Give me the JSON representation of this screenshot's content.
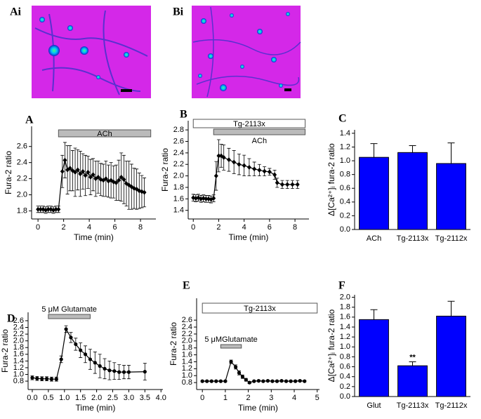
{
  "images": [
    {
      "label": "Ai"
    },
    {
      "label": "Bi"
    }
  ],
  "chart_data": [
    {
      "panel": "A",
      "type": "line",
      "marker": "diamond",
      "color": "#000000",
      "x": [
        0,
        0.2,
        0.4,
        0.6,
        0.8,
        1.0,
        1.2,
        1.4,
        1.6,
        1.9,
        2.1,
        2.3,
        2.5,
        2.7,
        2.9,
        3.1,
        3.3,
        3.5,
        3.7,
        3.9,
        4.1,
        4.3,
        4.5,
        4.7,
        4.9,
        5.1,
        5.3,
        5.5,
        5.7,
        5.9,
        6.1,
        6.3,
        6.5,
        6.7,
        6.9,
        7.1,
        7.3,
        7.5,
        7.7,
        7.9,
        8.1,
        8.3
      ],
      "values": [
        1.82,
        1.82,
        1.82,
        1.81,
        1.82,
        1.82,
        1.81,
        1.82,
        1.82,
        2.29,
        2.43,
        2.31,
        2.33,
        2.3,
        2.28,
        2.31,
        2.26,
        2.29,
        2.24,
        2.28,
        2.22,
        2.25,
        2.2,
        2.22,
        2.19,
        2.18,
        2.2,
        2.17,
        2.18,
        2.16,
        2.15,
        2.18,
        2.22,
        2.19,
        2.14,
        2.12,
        2.1,
        2.08,
        2.07,
        2.05,
        2.04,
        2.03
      ],
      "errors": [
        0.04,
        0.04,
        0.04,
        0.04,
        0.04,
        0.04,
        0.04,
        0.04,
        0.04,
        0.2,
        0.22,
        0.3,
        0.28,
        0.25,
        0.3,
        0.25,
        0.28,
        0.22,
        0.25,
        0.2,
        0.22,
        0.2,
        0.22,
        0.2,
        0.2,
        0.2,
        0.22,
        0.2,
        0.22,
        0.2,
        0.22,
        0.25,
        0.3,
        0.3,
        0.28,
        0.3,
        0.28,
        0.25,
        0.25,
        0.22,
        0.2,
        0.18
      ],
      "xlim": [
        -0.5,
        9.2
      ],
      "ylim": [
        1.7,
        2.85
      ],
      "xticks": [
        0,
        2,
        4,
        6,
        8
      ],
      "yticks": [
        1.8,
        {
          "value": 2,
          "label": "2.0"
        },
        2.2,
        2.4,
        2.6
      ],
      "xlabel": "Time (min)",
      "ylabel": "Fura-2 ratio",
      "bars": [
        {
          "text": "ACh",
          "start": 1.6,
          "end": 8.8,
          "fill": "#bbbbbb",
          "label_position": "inside"
        }
      ]
    },
    {
      "panel": "B",
      "type": "line",
      "marker": "diamond",
      "color": "#000000",
      "x": [
        0,
        0.2,
        0.4,
        0.6,
        0.8,
        1.0,
        1.2,
        1.4,
        1.6,
        1.8,
        2.0,
        2.2,
        2.4,
        2.8,
        3.2,
        3.6,
        4.0,
        4.4,
        4.8,
        5.2,
        5.6,
        6.0,
        6.4,
        6.6,
        7.0,
        7.4,
        7.8,
        8.2
      ],
      "values": [
        1.62,
        1.61,
        1.62,
        1.6,
        1.61,
        1.6,
        1.6,
        1.59,
        1.61,
        2.0,
        2.35,
        2.35,
        2.32,
        2.28,
        2.24,
        2.2,
        2.18,
        2.15,
        2.12,
        2.1,
        2.08,
        2.07,
        2.02,
        1.88,
        1.85,
        1.85,
        1.85,
        1.85
      ],
      "errors": [
        0.06,
        0.06,
        0.06,
        0.06,
        0.06,
        0.06,
        0.06,
        0.06,
        0.06,
        0.25,
        0.28,
        0.2,
        0.22,
        0.2,
        0.2,
        0.18,
        0.18,
        0.15,
        0.12,
        0.1,
        0.08,
        0.06,
        0.08,
        0.08,
        0.07,
        0.07,
        0.07,
        0.07
      ],
      "xlim": [
        -0.4,
        9.1
      ],
      "ylim": [
        1.25,
        2.96
      ],
      "xticks": [
        0,
        2,
        4,
        6,
        8
      ],
      "yticks": [
        1.4,
        1.6,
        1.8,
        {
          "value": 2,
          "label": "2.0"
        },
        2.2,
        2.4,
        2.6,
        2.8
      ],
      "xlabel": "Time (min)",
      "ylabel": "Fura-2 ratio",
      "bars": [
        {
          "text": "Tg-2113x",
          "start": 0,
          "end": 8.8,
          "fill": "#ffffff",
          "label_position": "inside"
        },
        {
          "text": "ACh",
          "start": 1.6,
          "end": 8.8,
          "fill": "#bbbbbb",
          "label_position": "below"
        }
      ]
    },
    {
      "panel": "C",
      "type": "bar",
      "color": "#0000ff",
      "categories": [
        "ACh",
        "Tg-2113x",
        "Tg-2112x"
      ],
      "values": [
        1.05,
        1.12,
        0.96
      ],
      "errors": [
        0.2,
        0.1,
        0.3
      ],
      "ylim": [
        0,
        1.45
      ],
      "yticks": [
        {
          "value": 0,
          "label": "0.0"
        },
        0.2,
        0.4,
        0.6,
        0.8,
        {
          "value": 1,
          "label": "1.0"
        },
        1.2,
        1.4
      ],
      "ylabel": "Δ[Ca²⁺]ᵢ fura-2 ratio"
    },
    {
      "panel": "D",
      "type": "line",
      "marker": "circle",
      "color": "#000000",
      "x": [
        0,
        0.15,
        0.3,
        0.45,
        0.6,
        0.75,
        0.9,
        1.05,
        1.2,
        1.35,
        1.5,
        1.65,
        1.8,
        1.95,
        2.1,
        2.25,
        2.4,
        2.55,
        2.7,
        2.85,
        3.0,
        3.5
      ],
      "values": [
        0.9,
        0.88,
        0.87,
        0.87,
        0.86,
        0.86,
        1.45,
        2.35,
        2.1,
        1.9,
        1.72,
        1.6,
        1.45,
        1.35,
        1.25,
        1.17,
        1.12,
        1.1,
        1.07,
        1.07,
        1.07,
        1.08
      ],
      "errors": [
        0.06,
        0.06,
        0.06,
        0.06,
        0.06,
        0.06,
        0.1,
        0.1,
        0.15,
        0.18,
        0.22,
        0.25,
        0.3,
        0.32,
        0.35,
        0.3,
        0.28,
        0.25,
        0.22,
        0.2,
        0.2,
        0.25
      ],
      "xlim": [
        -0.13,
        4.06
      ],
      "ylim": [
        0.55,
        2.85
      ],
      "xticks": [
        {
          "value": 0,
          "label": "0.0"
        },
        0.5,
        {
          "value": 1,
          "label": "1.0"
        },
        1.5,
        {
          "value": 2,
          "label": "2.0"
        },
        2.5,
        {
          "value": 3,
          "label": "3.0"
        },
        3.5,
        {
          "value": 4,
          "label": "4.0"
        }
      ],
      "yticks": [
        0.8,
        {
          "value": 1,
          "label": "1.0"
        },
        1.2,
        1.4,
        1.6,
        1.8,
        {
          "value": 2,
          "label": "2.0"
        },
        2.2,
        2.4,
        2.6
      ],
      "xlabel": "Time (min)",
      "ylabel": "Fura-2 ratio",
      "bars": [
        {
          "text": "5 μM Glutamate",
          "start": 0.5,
          "end": 1.8,
          "fill": "#bbbbbb",
          "label_position": "above"
        }
      ]
    },
    {
      "panel": "E",
      "type": "line",
      "marker": "circle",
      "color": "#000000",
      "x": [
        0,
        0.2,
        0.4,
        0.6,
        0.8,
        1.0,
        1.25,
        1.45,
        1.6,
        1.75,
        1.9,
        2.05,
        2.25,
        2.45,
        2.65,
        2.85,
        3.05,
        3.25,
        3.45,
        3.65,
        3.85,
        4.05,
        4.25,
        4.45
      ],
      "values": [
        0.84,
        0.84,
        0.84,
        0.84,
        0.84,
        0.84,
        1.4,
        1.25,
        1.08,
        0.97,
        0.88,
        0.8,
        0.84,
        0.85,
        0.84,
        0.85,
        0.84,
        0.84,
        0.85,
        0.84,
        0.84,
        0.84,
        0.85,
        0.84
      ],
      "errors": [
        0.02,
        0.02,
        0.02,
        0.02,
        0.02,
        0.02,
        0.05,
        0.06,
        0.06,
        0.05,
        0.04,
        0.03,
        0.02,
        0.02,
        0.02,
        0.02,
        0.02,
        0.02,
        0.02,
        0.02,
        0.02,
        0.02,
        0.02,
        0.02
      ],
      "xlim": [
        -0.25,
        5.1
      ],
      "ylim": [
        0.6,
        3.23
      ],
      "xticks": [
        0,
        1,
        2,
        3,
        4,
        5
      ],
      "yticks": [
        0.8,
        {
          "value": 1,
          "label": "1.0"
        },
        1.2,
        1.4,
        1.6,
        1.8,
        {
          "value": 2,
          "label": "2.0"
        },
        2.2,
        2.4,
        2.6
      ],
      "xlabel": "Time (min)",
      "ylabel": "Fura-2 ratio",
      "bars": [
        {
          "text": "Tg-2113x",
          "start": 0,
          "end": 5,
          "fill": "#ffffff",
          "label_position": "inside"
        },
        {
          "text": "5 μMGlutamate",
          "start": 0.8,
          "end": 1.7,
          "fill": "#bbbbbb",
          "label_position": "above"
        }
      ]
    },
    {
      "panel": "F",
      "type": "bar",
      "color": "#0000ff",
      "categories": [
        "Glut",
        "Tg-2113x",
        "Tg-2112x"
      ],
      "values": [
        1.55,
        0.62,
        1.62
      ],
      "errors": [
        0.2,
        0.08,
        0.3
      ],
      "ylim": [
        0,
        2.05
      ],
      "yticks": [
        {
          "value": 0,
          "label": "0.0"
        },
        0.2,
        0.4,
        0.6,
        0.8,
        {
          "value": 1,
          "label": "1.0"
        },
        1.2,
        1.4,
        1.6,
        1.8,
        {
          "value": 2,
          "label": "2.0"
        }
      ],
      "ylabel": "Δ[Ca²⁺]ᵢ fura-2 ratio",
      "annotations": [
        {
          "text": "**",
          "category": 1
        }
      ]
    }
  ]
}
